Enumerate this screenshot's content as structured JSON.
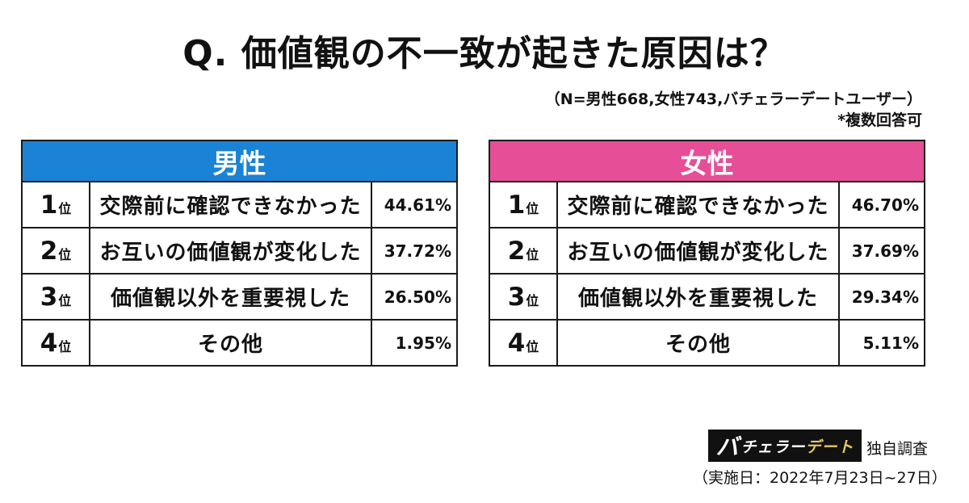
{
  "title": "Q. 価値観の不一致が起きた原因は？",
  "sample_note": "（N=男性668,女性743,バチェラーデートユーザー）",
  "multiple_answer_note": "*複数回答可",
  "rank_suffix": "位",
  "chart_data": [
    {
      "type": "table",
      "title": "男性",
      "header_color": "#1a83d6",
      "rows": [
        {
          "rank": "1",
          "reason": "交際前に確認できなかった",
          "percent": "44.61%"
        },
        {
          "rank": "2",
          "reason": "お互いの価値観が変化した",
          "percent": "37.72%"
        },
        {
          "rank": "3",
          "reason": "価値観以外を重要視した",
          "percent": "26.50%"
        },
        {
          "rank": "4",
          "reason": "その他",
          "percent": "1.95%"
        }
      ]
    },
    {
      "type": "table",
      "title": "女性",
      "header_color": "#e64f97",
      "rows": [
        {
          "rank": "1",
          "reason": "交際前に確認できなかった",
          "percent": "46.70%"
        },
        {
          "rank": "2",
          "reason": "お互いの価値観が変化した",
          "percent": "37.69%"
        },
        {
          "rank": "3",
          "reason": "価値観以外を重要視した",
          "percent": "29.34%"
        },
        {
          "rank": "4",
          "reason": "その他",
          "percent": "5.11%"
        }
      ]
    }
  ],
  "footer": {
    "brand_first": "バ",
    "brand_mid": "チェラー",
    "brand_last": "デート",
    "survey_label": "独自調査",
    "period": "（実施日：2022年7月23日~27日）"
  }
}
